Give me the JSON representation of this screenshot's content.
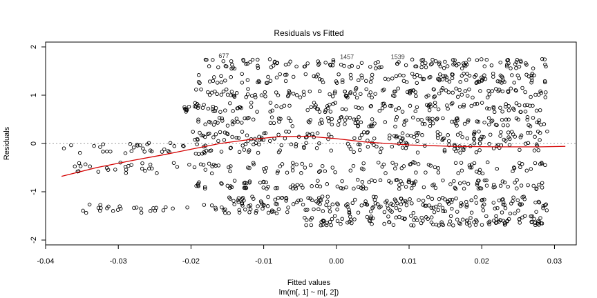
{
  "chart_data": {
    "type": "scatter",
    "title": "Residuals vs Fitted",
    "xlabel": "Fitted values",
    "xlabel_sub": "lm(m[, 1] ~ m[, 2])",
    "ylabel": "Residuals",
    "xlim": [
      -0.04,
      0.033
    ],
    "ylim": [
      -2.1,
      2.1
    ],
    "xticks": [
      -0.04,
      -0.03,
      -0.02,
      -0.01,
      0.0,
      0.01,
      0.02,
      0.03
    ],
    "xtick_labels": [
      "-0.04",
      "-0.03",
      "-0.02",
      "-0.01",
      "0.00",
      "0.01",
      "0.02",
      "0.03"
    ],
    "yticks": [
      -2,
      -1,
      0,
      1,
      2
    ],
    "ytick_labels": [
      "-2",
      "-1",
      "0",
      "1",
      "2"
    ],
    "reference_line": {
      "y": 0,
      "style": "dotted",
      "color": "#9a9a9a"
    },
    "smooth_line": {
      "color": "#d40000",
      "x": [
        -0.0378,
        -0.033,
        -0.028,
        -0.024,
        -0.02,
        -0.016,
        -0.012,
        -0.008,
        -0.004,
        0.0,
        0.004,
        0.01,
        0.016,
        0.022,
        0.028,
        0.0315
      ],
      "y": [
        -0.68,
        -0.5,
        -0.35,
        -0.24,
        -0.12,
        0.0,
        0.08,
        0.14,
        0.15,
        0.1,
        0.03,
        -0.03,
        -0.06,
        -0.07,
        -0.07,
        -0.06
      ]
    },
    "point_labels": [
      {
        "text": "677",
        "x": -0.0162,
        "y": 1.77
      },
      {
        "text": "1457",
        "x": 0.0005,
        "y": 1.75
      },
      {
        "text": "1539",
        "x": 0.0075,
        "y": 1.75
      }
    ],
    "residual_bands": [
      {
        "x": [
          -0.018,
          0.029
        ],
        "y": 1.65,
        "spread": 0.1
      },
      {
        "x": [
          -0.019,
          0.029
        ],
        "y": 1.35,
        "spread": 0.1
      },
      {
        "x": [
          -0.02,
          0.029
        ],
        "y": 1.05,
        "spread": 0.1
      },
      {
        "x": [
          -0.021,
          0.029
        ],
        "y": 0.75,
        "spread": 0.1
      },
      {
        "x": [
          -0.019,
          0.029
        ],
        "y": 0.45,
        "spread": 0.1
      },
      {
        "x": [
          -0.02,
          0.029
        ],
        "y": 0.15,
        "spread": 0.1
      },
      {
        "x": [
          -0.0375,
          0.029
        ],
        "y": -0.1,
        "spread": 0.12
      },
      {
        "x": [
          -0.036,
          0.029
        ],
        "y": -0.5,
        "spread": 0.12
      },
      {
        "x": [
          -0.02,
          0.029
        ],
        "y": -0.85,
        "spread": 0.1
      },
      {
        "x": [
          -0.015,
          0.029
        ],
        "y": -1.2,
        "spread": 0.1
      },
      {
        "x": [
          -0.035,
          0.029
        ],
        "y": -1.35,
        "spread": 0.1
      },
      {
        "x": [
          -0.005,
          0.029
        ],
        "y": -1.6,
        "spread": 0.1
      }
    ],
    "points_per_band": 120
  }
}
